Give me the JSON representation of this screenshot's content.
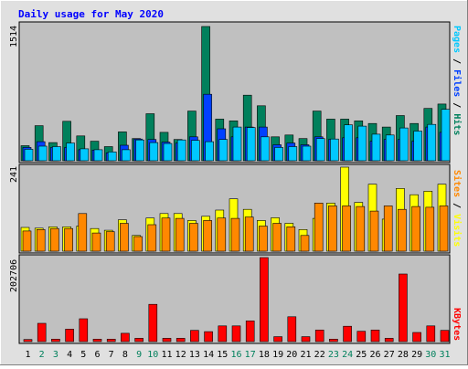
{
  "title": "Daily usage for May 2020",
  "colors": {
    "hits": "#00805c",
    "files": "#0040ff",
    "pages": "#00c8ff",
    "visits": "#ffff00",
    "sites": "#ff8800",
    "kbytes": "#ff0000",
    "weekend_label": "#00805c",
    "weekday_label": "#000000",
    "plot_bg": "#c0c0c0",
    "frame_bg": "#e0e0e0",
    "title_color": "#0000ff"
  },
  "chart_data": [
    {
      "type": "bar",
      "panel": "hits-files-pages",
      "ymax_label": "1514",
      "ylim": [
        0,
        1514
      ],
      "side_label": {
        "parts": [
          "Pages",
          " / ",
          "Files",
          " / ",
          "Hits"
        ],
        "colors": [
          "#00c8ff",
          "#000000",
          "#0040ff",
          "#000000",
          "#00805c"
        ]
      },
      "categories": [
        "1",
        "2",
        "3",
        "4",
        "5",
        "6",
        "7",
        "8",
        "9",
        "10",
        "11",
        "12",
        "13",
        "14",
        "15",
        "16",
        "17",
        "18",
        "19",
        "20",
        "21",
        "22",
        "23",
        "24",
        "25",
        "26",
        "27",
        "28",
        "29",
        "30",
        "31"
      ],
      "series": [
        {
          "name": "Hits",
          "values": [
            170,
            395,
            205,
            445,
            280,
            220,
            160,
            325,
            250,
            530,
            320,
            240,
            560,
            1514,
            470,
            450,
            740,
            620,
            270,
            290,
            250,
            560,
            470,
            470,
            450,
            420,
            380,
            510,
            420,
            590,
            640
          ]
        },
        {
          "name": "Files",
          "values": [
            150,
            215,
            150,
            150,
            125,
            120,
            90,
            175,
            245,
            240,
            210,
            200,
            270,
            750,
            360,
            270,
            380,
            380,
            180,
            200,
            180,
            270,
            240,
            260,
            260,
            220,
            240,
            240,
            220,
            380,
            320
          ]
        },
        {
          "name": "Pages",
          "values": [
            130,
            165,
            160,
            200,
            135,
            125,
            100,
            125,
            235,
            205,
            195,
            235,
            230,
            215,
            240,
            380,
            375,
            270,
            150,
            160,
            165,
            250,
            245,
            405,
            390,
            300,
            290,
            370,
            335,
            410,
            580
          ]
        }
      ]
    },
    {
      "type": "bar",
      "panel": "sites-visits",
      "ymax_label": "241",
      "ylim": [
        0,
        241
      ],
      "side_label": {
        "parts": [
          "Sites",
          " / ",
          "Visits"
        ],
        "colors": [
          "#ff8800",
          "#000000",
          "#ffff00"
        ]
      },
      "categories": [
        "1",
        "2",
        "3",
        "4",
        "5",
        "6",
        "7",
        "8",
        "9",
        "10",
        "11",
        "12",
        "13",
        "14",
        "15",
        "16",
        "17",
        "18",
        "19",
        "20",
        "21",
        "22",
        "23",
        "24",
        "25",
        "26",
        "27",
        "28",
        "29",
        "30",
        "31"
      ],
      "series": [
        {
          "name": "Visits",
          "values": [
            68,
            66,
            70,
            70,
            72,
            65,
            60,
            90,
            45,
            95,
            108,
            108,
            88,
            100,
            118,
            150,
            120,
            88,
            96,
            80,
            62,
            94,
            138,
            241,
            140,
            192,
            92,
            180,
            162,
            172,
            192
          ]
        },
        {
          "name": "Sites",
          "values": [
            58,
            62,
            65,
            65,
            108,
            52,
            56,
            80,
            42,
            76,
            95,
            94,
            80,
            88,
            95,
            94,
            98,
            72,
            80,
            70,
            45,
            138,
            130,
            130,
            128,
            115,
            130,
            120,
            128,
            126,
            130
          ]
        }
      ]
    },
    {
      "type": "bar",
      "panel": "kbytes",
      "ymax_label": "202706",
      "ylim": [
        0,
        202706
      ],
      "side_label": {
        "parts": [
          "KBytes"
        ],
        "colors": [
          "#ff0000"
        ]
      },
      "categories": [
        "1",
        "2",
        "3",
        "4",
        "5",
        "6",
        "7",
        "8",
        "9",
        "10",
        "11",
        "12",
        "13",
        "14",
        "15",
        "16",
        "17",
        "18",
        "19",
        "20",
        "21",
        "22",
        "23",
        "24",
        "25",
        "26",
        "27",
        "28",
        "29",
        "30",
        "31"
      ],
      "series": [
        {
          "name": "KBytes",
          "values": [
            5000,
            44000,
            6000,
            30000,
            55000,
            6000,
            6000,
            20000,
            8000,
            90000,
            8000,
            8000,
            27000,
            24000,
            38000,
            38000,
            50000,
            202706,
            12000,
            60000,
            12000,
            28000,
            6000,
            37000,
            25000,
            28000,
            8000,
            163000,
            22000,
            38000,
            27000
          ]
        }
      ]
    }
  ],
  "day_labels": {
    "days": [
      "1",
      "2",
      "3",
      "4",
      "5",
      "6",
      "7",
      "8",
      "9",
      "10",
      "11",
      "12",
      "13",
      "14",
      "15",
      "16",
      "17",
      "18",
      "19",
      "20",
      "21",
      "22",
      "23",
      "24",
      "25",
      "26",
      "27",
      "28",
      "29",
      "30",
      "31"
    ],
    "weekend": [
      false,
      true,
      true,
      false,
      false,
      false,
      false,
      false,
      true,
      true,
      false,
      false,
      false,
      false,
      false,
      true,
      true,
      false,
      false,
      false,
      false,
      false,
      true,
      true,
      false,
      false,
      false,
      false,
      false,
      true,
      true
    ]
  }
}
